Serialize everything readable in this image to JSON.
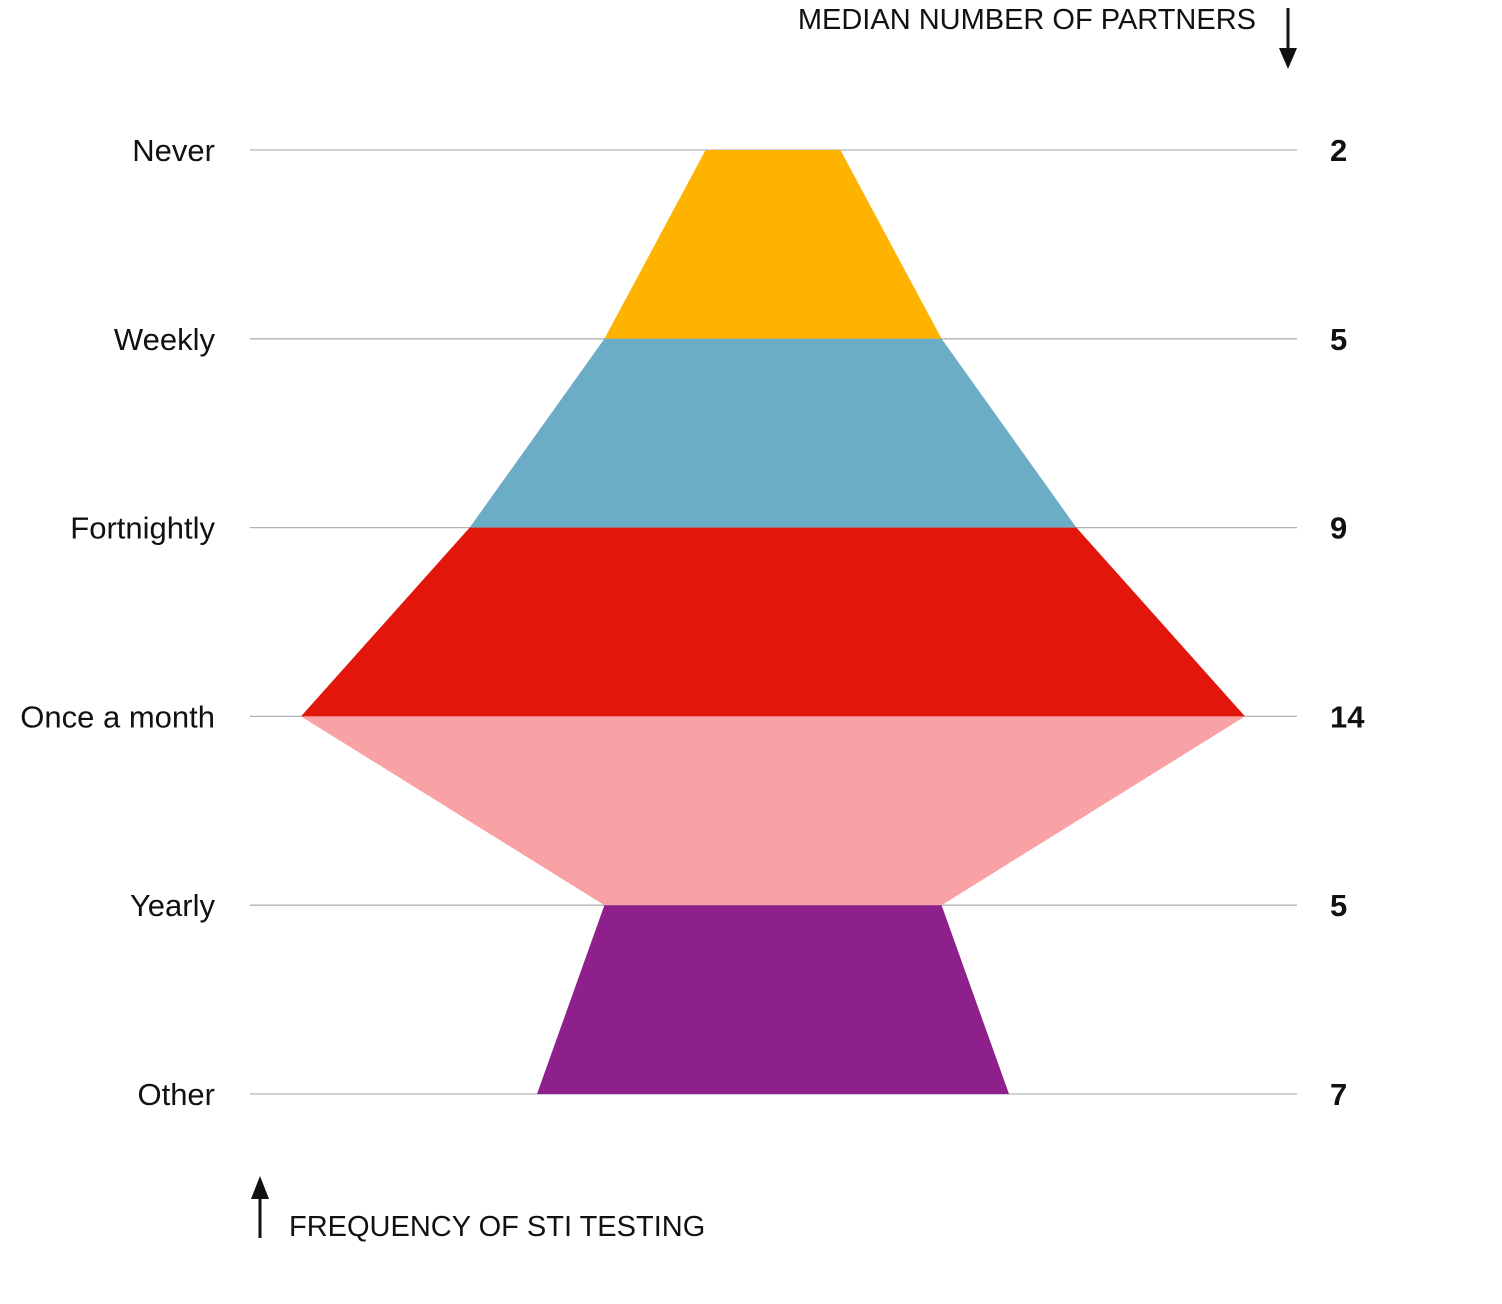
{
  "chart_data": {
    "type": "area",
    "categories": [
      "Never",
      "Weekly",
      "Fortnightly",
      "Once a month",
      "Yearly",
      "Other"
    ],
    "values": [
      2,
      5,
      9,
      14,
      5,
      7
    ],
    "band_colors": [
      "#FDB300",
      "#6BADC5",
      "#E3160B",
      "#F9A2A5",
      "#8E208C"
    ],
    "xlabel": "FREQUENCY OF STI TESTING",
    "ylabel": "MEDIAN NUMBER OF PARTNERS",
    "grid": true
  }
}
